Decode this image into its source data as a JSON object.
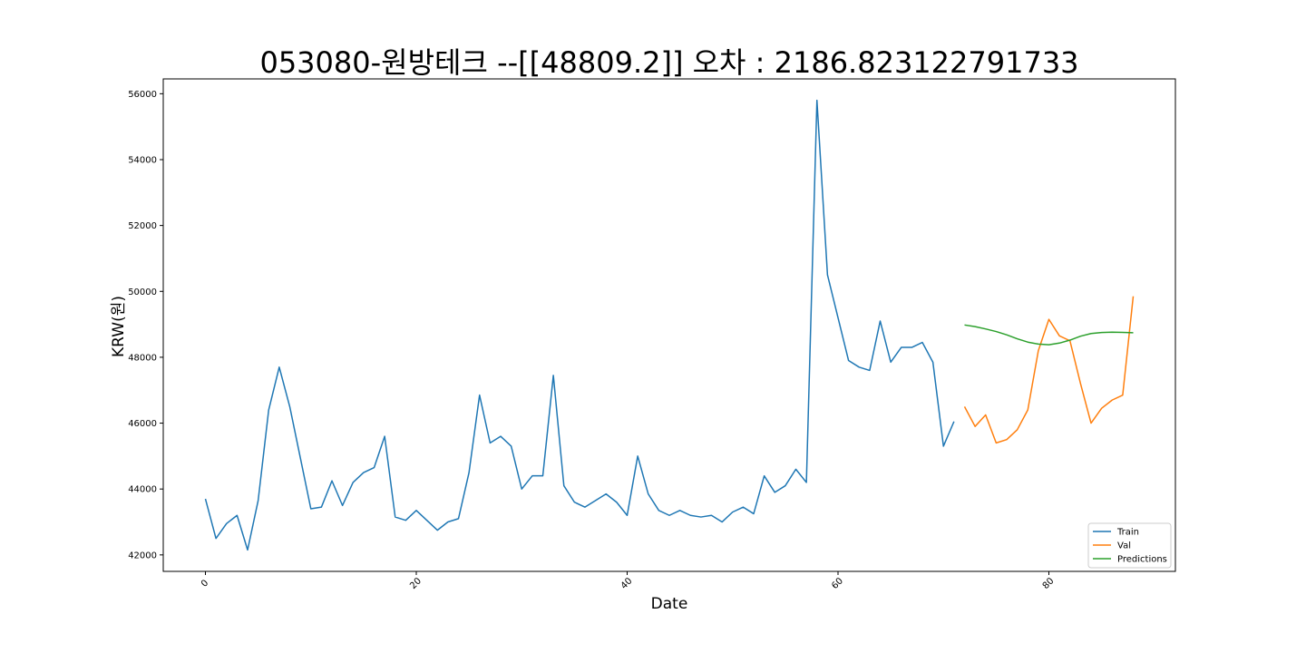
{
  "chart_data": {
    "type": "line",
    "title": "053080-원방테크 --[[48809.2]] 오차 : 2186.823122791733",
    "xlabel": "Date",
    "ylabel": "KRW(원)",
    "xlim": [
      -4,
      92
    ],
    "ylim": [
      41500,
      56450
    ],
    "x_ticks": [
      0,
      20,
      40,
      60,
      80
    ],
    "y_ticks": [
      42000,
      44000,
      46000,
      48000,
      50000,
      52000,
      54000,
      56000
    ],
    "grid": false,
    "legend_position": "bottom-right",
    "series": [
      {
        "name": "Train",
        "color": "#1f77b4",
        "x": [
          0,
          1,
          2,
          3,
          4,
          5,
          6,
          7,
          8,
          9,
          10,
          11,
          12,
          13,
          14,
          15,
          16,
          17,
          18,
          19,
          20,
          21,
          22,
          23,
          24,
          25,
          26,
          27,
          28,
          29,
          30,
          31,
          32,
          33,
          34,
          35,
          36,
          37,
          38,
          39,
          40,
          41,
          42,
          43,
          44,
          45,
          46,
          47,
          48,
          49,
          50,
          51,
          52,
          53,
          54,
          55,
          56,
          57,
          58,
          59,
          60,
          61,
          62,
          63,
          64,
          65,
          66,
          67,
          68,
          69,
          70,
          71
        ],
        "values": [
          43700,
          42500,
          42950,
          43200,
          42150,
          43650,
          46400,
          47700,
          46500,
          44950,
          43400,
          43450,
          44250,
          43500,
          44200,
          44500,
          44650,
          45600,
          43150,
          43050,
          43350,
          43050,
          42750,
          43000,
          43100,
          44500,
          46850,
          45400,
          45600,
          45300,
          44000,
          44400,
          44400,
          47450,
          44100,
          43600,
          43450,
          43650,
          43850,
          43600,
          43200,
          45000,
          43850,
          43350,
          43200,
          43350,
          43200,
          43150,
          43200,
          43000,
          43300,
          43450,
          43250,
          44400,
          43900,
          44100,
          44600,
          44200,
          55800,
          50500,
          49200,
          47900,
          47700,
          47600,
          49100,
          47850,
          48300,
          48300,
          48450,
          47850,
          45300,
          46050
        ]
      },
      {
        "name": "Val",
        "color": "#ff7f0e",
        "x": [
          72,
          73,
          74,
          75,
          76,
          77,
          78,
          79,
          80,
          81,
          82,
          83,
          84,
          85,
          86,
          87,
          88
        ],
        "values": [
          46500,
          45900,
          46250,
          45400,
          45500,
          45800,
          46400,
          48200,
          49150,
          48650,
          48500,
          47200,
          46000,
          46450,
          46700,
          46850,
          49850
        ]
      },
      {
        "name": "Predictions",
        "color": "#2ca02c",
        "x": [
          72,
          73,
          74,
          75,
          76,
          77,
          78,
          79,
          80,
          81,
          82,
          83,
          84,
          85,
          86,
          87,
          88
        ],
        "values": [
          48980,
          48930,
          48860,
          48780,
          48680,
          48560,
          48460,
          48400,
          48380,
          48430,
          48520,
          48640,
          48720,
          48750,
          48760,
          48755,
          48745
        ]
      }
    ]
  }
}
